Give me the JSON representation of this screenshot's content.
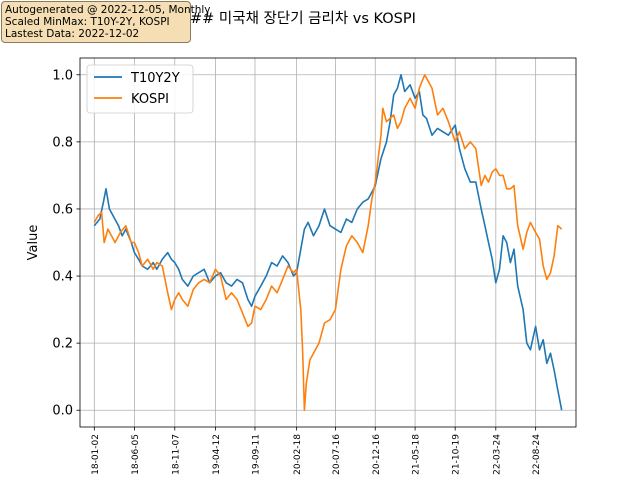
{
  "annotation_box": {
    "line1": "Autogenerated @ 2022-12-05, Monthly",
    "line2": "Scaled MinMax:  T10Y-2Y, KOSPI",
    "line3": "Lastest Data:  2022-12-02"
  },
  "chart_data": {
    "type": "line",
    "title": "## 미국채 장단기 금리차 vs KOSPI",
    "xlabel": "",
    "ylabel": "Value",
    "ylim": [
      -0.05,
      1.05
    ],
    "xlim": [
      "2017-11-08",
      "2023-01-26"
    ],
    "grid": true,
    "legend": "top-left",
    "yticks": [
      "0.0",
      "0.2",
      "0.4",
      "0.6",
      "0.8",
      "1.0"
    ],
    "xticks": [
      "2018-01-02",
      "2018-06-05",
      "2018-11-07",
      "2019-04-12",
      "2019-09-11",
      "2020-02-18",
      "2020-07-16",
      "2020-12-16",
      "2021-05-18",
      "2021-10-19",
      "2022-03-24",
      "2022-08-24"
    ],
    "xtick_labels": [
      "18-01-02",
      "18-06-05",
      "18-11-07",
      "19-04-12",
      "19-09-11",
      "20-02-18",
      "20-07-16",
      "20-12-16",
      "21-05-18",
      "21-10-19",
      "22-03-24",
      "22-08-24"
    ],
    "series": [
      {
        "name": "T10Y2Y",
        "color": "#1f77b4",
        "points": [
          [
            "2018-01-02",
            0.55
          ],
          [
            "2018-01-23",
            0.57
          ],
          [
            "2018-02-06",
            0.62
          ],
          [
            "2018-02-16",
            0.66
          ],
          [
            "2018-03-01",
            0.6
          ],
          [
            "2018-03-15",
            0.58
          ],
          [
            "2018-04-05",
            0.55
          ],
          [
            "2018-04-19",
            0.52
          ],
          [
            "2018-05-03",
            0.54
          ],
          [
            "2018-05-24",
            0.5
          ],
          [
            "2018-06-05",
            0.47
          ],
          [
            "2018-06-21",
            0.45
          ],
          [
            "2018-07-05",
            0.43
          ],
          [
            "2018-07-26",
            0.42
          ],
          [
            "2018-08-16",
            0.44
          ],
          [
            "2018-08-30",
            0.42
          ],
          [
            "2018-09-20",
            0.45
          ],
          [
            "2018-10-11",
            0.47
          ],
          [
            "2018-10-25",
            0.45
          ],
          [
            "2018-11-07",
            0.44
          ],
          [
            "2018-11-22",
            0.42
          ],
          [
            "2018-12-06",
            0.39
          ],
          [
            "2018-12-27",
            0.37
          ],
          [
            "2019-01-17",
            0.4
          ],
          [
            "2019-02-07",
            0.41
          ],
          [
            "2019-02-28",
            0.42
          ],
          [
            "2019-03-21",
            0.38
          ],
          [
            "2019-04-12",
            0.4
          ],
          [
            "2019-05-02",
            0.41
          ],
          [
            "2019-05-23",
            0.38
          ],
          [
            "2019-06-13",
            0.37
          ],
          [
            "2019-07-04",
            0.39
          ],
          [
            "2019-07-25",
            0.38
          ],
          [
            "2019-08-15",
            0.33
          ],
          [
            "2019-08-29",
            0.31
          ],
          [
            "2019-09-11",
            0.34
          ],
          [
            "2019-10-03",
            0.37
          ],
          [
            "2019-10-24",
            0.4
          ],
          [
            "2019-11-14",
            0.44
          ],
          [
            "2019-12-05",
            0.43
          ],
          [
            "2019-12-26",
            0.46
          ],
          [
            "2020-01-16",
            0.44
          ],
          [
            "2020-02-06",
            0.4
          ],
          [
            "2020-02-18",
            0.41
          ],
          [
            "2020-03-05",
            0.48
          ],
          [
            "2020-03-19",
            0.54
          ],
          [
            "2020-04-02",
            0.56
          ],
          [
            "2020-04-23",
            0.52
          ],
          [
            "2020-05-14",
            0.55
          ],
          [
            "2020-06-04",
            0.6
          ],
          [
            "2020-06-25",
            0.55
          ],
          [
            "2020-07-16",
            0.54
          ],
          [
            "2020-08-06",
            0.53
          ],
          [
            "2020-08-27",
            0.57
          ],
          [
            "2020-09-17",
            0.56
          ],
          [
            "2020-10-08",
            0.6
          ],
          [
            "2020-10-29",
            0.62
          ],
          [
            "2020-11-19",
            0.63
          ],
          [
            "2020-12-03",
            0.65
          ],
          [
            "2020-12-16",
            0.67
          ],
          [
            "2021-01-07",
            0.75
          ],
          [
            "2021-01-28",
            0.8
          ],
          [
            "2021-02-11",
            0.86
          ],
          [
            "2021-02-25",
            0.94
          ],
          [
            "2021-03-11",
            0.96
          ],
          [
            "2021-03-25",
            1.0
          ],
          [
            "2021-04-08",
            0.95
          ],
          [
            "2021-04-29",
            0.97
          ],
          [
            "2021-05-18",
            0.93
          ],
          [
            "2021-06-03",
            0.95
          ],
          [
            "2021-06-17",
            0.88
          ],
          [
            "2021-07-01",
            0.87
          ],
          [
            "2021-07-22",
            0.82
          ],
          [
            "2021-08-12",
            0.84
          ],
          [
            "2021-09-02",
            0.83
          ],
          [
            "2021-09-23",
            0.82
          ],
          [
            "2021-10-19",
            0.85
          ],
          [
            "2021-11-04",
            0.78
          ],
          [
            "2021-11-25",
            0.72
          ],
          [
            "2021-12-16",
            0.68
          ],
          [
            "2022-01-06",
            0.68
          ],
          [
            "2022-01-27",
            0.6
          ],
          [
            "2022-02-10",
            0.55
          ],
          [
            "2022-02-24",
            0.5
          ],
          [
            "2022-03-10",
            0.45
          ],
          [
            "2022-03-24",
            0.38
          ],
          [
            "2022-04-07",
            0.42
          ],
          [
            "2022-04-21",
            0.52
          ],
          [
            "2022-05-05",
            0.5
          ],
          [
            "2022-05-19",
            0.44
          ],
          [
            "2022-06-02",
            0.48
          ],
          [
            "2022-06-16",
            0.37
          ],
          [
            "2022-07-07",
            0.3
          ],
          [
            "2022-07-21",
            0.2
          ],
          [
            "2022-08-04",
            0.18
          ],
          [
            "2022-08-24",
            0.25
          ],
          [
            "2022-09-08",
            0.18
          ],
          [
            "2022-09-22",
            0.21
          ],
          [
            "2022-10-06",
            0.14
          ],
          [
            "2022-10-20",
            0.17
          ],
          [
            "2022-11-03",
            0.12
          ],
          [
            "2022-11-17",
            0.06
          ],
          [
            "2022-12-02",
            0.0
          ]
        ]
      },
      {
        "name": "KOSPI",
        "color": "#ff7f0e",
        "points": [
          [
            "2018-01-02",
            0.56
          ],
          [
            "2018-01-16",
            0.58
          ],
          [
            "2018-01-30",
            0.59
          ],
          [
            "2018-02-09",
            0.5
          ],
          [
            "2018-02-23",
            0.54
          ],
          [
            "2018-03-09",
            0.52
          ],
          [
            "2018-03-23",
            0.5
          ],
          [
            "2018-04-12",
            0.53
          ],
          [
            "2018-05-03",
            0.55
          ],
          [
            "2018-05-24",
            0.5
          ],
          [
            "2018-06-05",
            0.5
          ],
          [
            "2018-06-21",
            0.47
          ],
          [
            "2018-07-05",
            0.43
          ],
          [
            "2018-07-26",
            0.45
          ],
          [
            "2018-08-16",
            0.42
          ],
          [
            "2018-08-30",
            0.44
          ],
          [
            "2018-09-20",
            0.43
          ],
          [
            "2018-10-11",
            0.35
          ],
          [
            "2018-10-25",
            0.3
          ],
          [
            "2018-11-07",
            0.33
          ],
          [
            "2018-11-22",
            0.35
          ],
          [
            "2018-12-06",
            0.33
          ],
          [
            "2018-12-27",
            0.31
          ],
          [
            "2019-01-17",
            0.36
          ],
          [
            "2019-02-07",
            0.38
          ],
          [
            "2019-02-28",
            0.39
          ],
          [
            "2019-03-21",
            0.38
          ],
          [
            "2019-04-12",
            0.42
          ],
          [
            "2019-05-02",
            0.4
          ],
          [
            "2019-05-23",
            0.33
          ],
          [
            "2019-06-13",
            0.35
          ],
          [
            "2019-07-04",
            0.33
          ],
          [
            "2019-07-25",
            0.29
          ],
          [
            "2019-08-15",
            0.25
          ],
          [
            "2019-08-29",
            0.26
          ],
          [
            "2019-09-11",
            0.31
          ],
          [
            "2019-10-03",
            0.3
          ],
          [
            "2019-10-24",
            0.33
          ],
          [
            "2019-11-14",
            0.37
          ],
          [
            "2019-12-05",
            0.35
          ],
          [
            "2019-12-26",
            0.39
          ],
          [
            "2020-01-16",
            0.43
          ],
          [
            "2020-02-06",
            0.41
          ],
          [
            "2020-02-18",
            0.42
          ],
          [
            "2020-02-27",
            0.35
          ],
          [
            "2020-03-05",
            0.3
          ],
          [
            "2020-03-12",
            0.18
          ],
          [
            "2020-03-19",
            0.0
          ],
          [
            "2020-03-26",
            0.08
          ],
          [
            "2020-04-09",
            0.15
          ],
          [
            "2020-04-23",
            0.17
          ],
          [
            "2020-05-14",
            0.2
          ],
          [
            "2020-06-04",
            0.26
          ],
          [
            "2020-06-25",
            0.27
          ],
          [
            "2020-07-16",
            0.3
          ],
          [
            "2020-08-06",
            0.42
          ],
          [
            "2020-08-27",
            0.49
          ],
          [
            "2020-09-17",
            0.52
          ],
          [
            "2020-10-08",
            0.5
          ],
          [
            "2020-10-29",
            0.47
          ],
          [
            "2020-11-19",
            0.55
          ],
          [
            "2020-12-03",
            0.63
          ],
          [
            "2020-12-16",
            0.68
          ],
          [
            "2021-01-07",
            0.82
          ],
          [
            "2021-01-14",
            0.9
          ],
          [
            "2021-01-28",
            0.86
          ],
          [
            "2021-02-11",
            0.87
          ],
          [
            "2021-02-25",
            0.88
          ],
          [
            "2021-03-11",
            0.84
          ],
          [
            "2021-03-25",
            0.86
          ],
          [
            "2021-04-08",
            0.9
          ],
          [
            "2021-04-29",
            0.93
          ],
          [
            "2021-05-18",
            0.9
          ],
          [
            "2021-06-03",
            0.96
          ],
          [
            "2021-06-24",
            1.0
          ],
          [
            "2021-07-08",
            0.98
          ],
          [
            "2021-07-22",
            0.96
          ],
          [
            "2021-08-12",
            0.88
          ],
          [
            "2021-09-02",
            0.9
          ],
          [
            "2021-09-23",
            0.86
          ],
          [
            "2021-10-19",
            0.8
          ],
          [
            "2021-11-04",
            0.83
          ],
          [
            "2021-11-25",
            0.78
          ],
          [
            "2021-12-16",
            0.8
          ],
          [
            "2022-01-06",
            0.78
          ],
          [
            "2022-01-27",
            0.67
          ],
          [
            "2022-02-10",
            0.7
          ],
          [
            "2022-02-24",
            0.68
          ],
          [
            "2022-03-10",
            0.71
          ],
          [
            "2022-03-24",
            0.72
          ],
          [
            "2022-04-07",
            0.7
          ],
          [
            "2022-04-21",
            0.7
          ],
          [
            "2022-05-05",
            0.66
          ],
          [
            "2022-05-19",
            0.66
          ],
          [
            "2022-06-02",
            0.67
          ],
          [
            "2022-06-16",
            0.55
          ],
          [
            "2022-07-07",
            0.48
          ],
          [
            "2022-07-21",
            0.53
          ],
          [
            "2022-08-04",
            0.56
          ],
          [
            "2022-08-24",
            0.53
          ],
          [
            "2022-09-08",
            0.51
          ],
          [
            "2022-09-22",
            0.43
          ],
          [
            "2022-10-06",
            0.39
          ],
          [
            "2022-10-20",
            0.41
          ],
          [
            "2022-11-03",
            0.46
          ],
          [
            "2022-11-17",
            0.55
          ],
          [
            "2022-12-02",
            0.54
          ]
        ]
      }
    ]
  }
}
